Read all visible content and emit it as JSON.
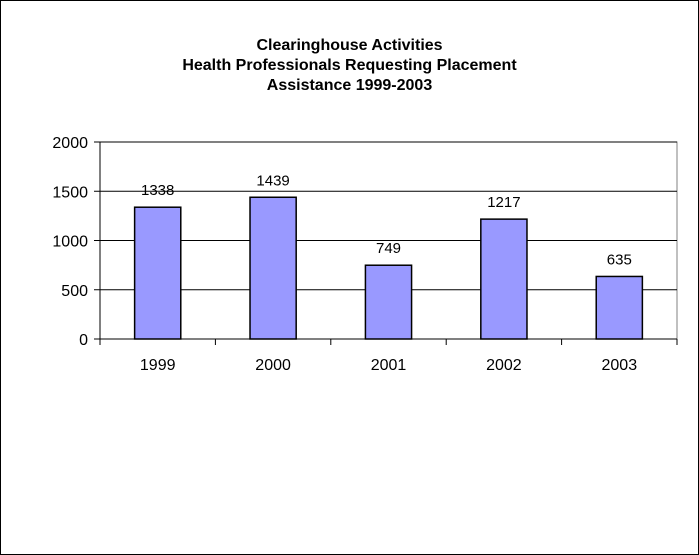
{
  "chart_data": {
    "type": "bar",
    "title_lines": [
      "Clearinghouse Activities",
      "Health Professionals Requesting Placement",
      "Assistance   1999-2003"
    ],
    "categories": [
      "1999",
      "2000",
      "2001",
      "2002",
      "2003"
    ],
    "values": [
      1338,
      1439,
      749,
      1217,
      635
    ],
    "data_labels": [
      "1338",
      "1439",
      "749",
      "1217",
      "635"
    ],
    "y_ticks": [
      "0",
      "500",
      "1000",
      "1500",
      "2000"
    ],
    "ylim": [
      0,
      2000
    ],
    "xlabel": "",
    "ylabel": "",
    "grid": true,
    "legend": "none",
    "bar_color": "#9999ff",
    "bar_border_color": "#000000"
  }
}
